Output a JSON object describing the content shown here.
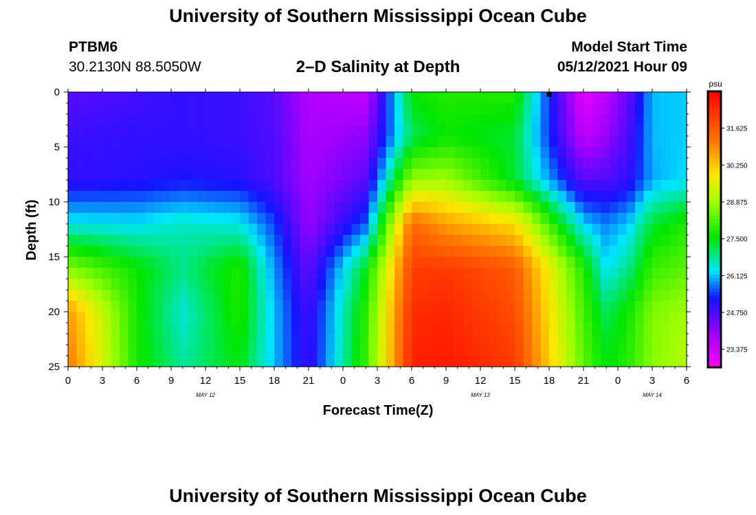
{
  "header": {
    "title": "University of Southern Mississippi Ocean Cube",
    "station": "PTBM6",
    "coords": "30.2130N  88.5050W",
    "subtitle": "2–D Salinity at Depth",
    "model_start_label": "Model Start Time",
    "model_start_value": "05/12/2021 Hour 09"
  },
  "footer": {
    "title": "University of Southern Mississippi Ocean Cube"
  },
  "chart_data": {
    "type": "heatmap",
    "title": "2-D Salinity at Depth",
    "xlabel": "Forecast Time(Z)",
    "ylabel": "Depth (ft)",
    "x_ticks": [
      "0",
      "3",
      "6",
      "9",
      "12",
      "15",
      "18",
      "21",
      "0",
      "3",
      "6",
      "9",
      "12",
      "15",
      "18",
      "21",
      "0",
      "3",
      "6"
    ],
    "x_range_hours": [
      0,
      54
    ],
    "date_labels": [
      {
        "text": "MAY 12",
        "hour": 12
      },
      {
        "text": "MAY 13",
        "hour": 36
      },
      {
        "text": "MAY 14",
        "hour": 51
      }
    ],
    "y_ticks": [
      "0",
      "5",
      "10",
      "15",
      "20",
      "25"
    ],
    "ylim": [
      0,
      25
    ],
    "colorbar": {
      "unit": "psu",
      "ticks": [
        "31.625",
        "30.250",
        "28.875",
        "27.500",
        "26.125",
        "24.750",
        "23.375"
      ],
      "min": 22.7,
      "max": 33.0
    },
    "current_time_marker_hour": 42,
    "value_grid": {
      "times_h": [
        0,
        6,
        10,
        15,
        18,
        21,
        26,
        30,
        33,
        39,
        45,
        47,
        49,
        51,
        54
      ],
      "depths_ft": [
        0,
        4,
        8,
        12,
        16,
        20,
        25
      ],
      "values_psu": [
        [
          24.6,
          24.8,
          25.0,
          24.9,
          24.6,
          23.7,
          23.5,
          27.6,
          27.8,
          27.8,
          23.0,
          23.6,
          24.5,
          26.1,
          26.2
        ],
        [
          24.9,
          25.0,
          25.0,
          24.9,
          24.7,
          23.8,
          24.1,
          27.1,
          27.6,
          27.3,
          23.5,
          24.0,
          24.8,
          26.1,
          26.2
        ],
        [
          25.0,
          25.1,
          25.2,
          25.1,
          24.7,
          23.9,
          24.6,
          28.8,
          28.9,
          27.3,
          24.6,
          24.7,
          25.0,
          26.0,
          26.3
        ],
        [
          26.4,
          26.3,
          26.6,
          26.4,
          25.5,
          24.0,
          25.6,
          31.4,
          30.7,
          30.0,
          26.2,
          25.8,
          26.2,
          27.3,
          27.8
        ],
        [
          28.6,
          27.6,
          26.9,
          27.8,
          25.9,
          24.5,
          27.4,
          32.0,
          32.1,
          31.6,
          27.8,
          26.3,
          26.9,
          28.0,
          28.3
        ],
        [
          30.8,
          27.7,
          26.5,
          27.8,
          26.1,
          24.8,
          27.9,
          32.3,
          32.4,
          31.8,
          28.1,
          27.1,
          27.7,
          28.6,
          28.9
        ],
        [
          31.2,
          27.7,
          26.8,
          27.5,
          26.1,
          24.9,
          28.0,
          32.5,
          32.6,
          32.1,
          28.3,
          27.5,
          27.9,
          28.7,
          29.1
        ]
      ]
    }
  }
}
